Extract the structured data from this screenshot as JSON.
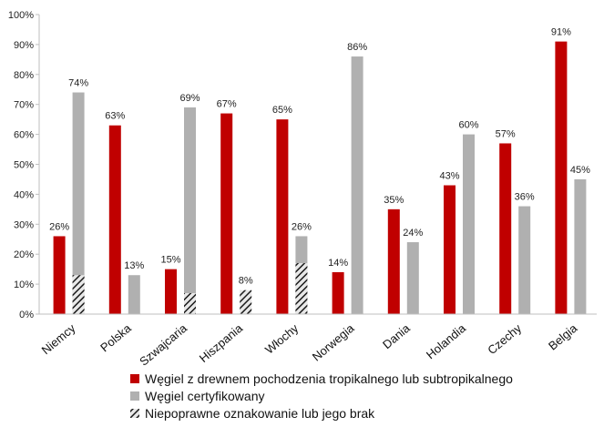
{
  "chart_data": {
    "type": "bar",
    "categories": [
      "Niemcy",
      "Polska",
      "Szwajcaria",
      "Hiszpania",
      "Włochy",
      "Norwegia",
      "Dania",
      "Holandia",
      "Czechy",
      "Belgia"
    ],
    "series": [
      {
        "name": "Węgiel z drewnem pochodzenia tropikalnego lub subtropikalnego",
        "color": "#c00000",
        "values": [
          26,
          63,
          15,
          67,
          65,
          14,
          35,
          43,
          57,
          91
        ],
        "labels": [
          "26%",
          "63%",
          "15%",
          "67%",
          "65%",
          "14%",
          "35%",
          "43%",
          "57%",
          "91%"
        ]
      },
      {
        "name": "Węgiel certyfikowany",
        "color": "#b0b0b0",
        "values": [
          74,
          13,
          69,
          null,
          26,
          86,
          24,
          60,
          36,
          45
        ],
        "labels": [
          "74%",
          "13%",
          "69%",
          "",
          "26%",
          "86%",
          "24%",
          "60%",
          "36%",
          "45%"
        ]
      },
      {
        "name": "Niepoprawne oznakowanie lub jego brak",
        "pattern": "hatched",
        "values": [
          13,
          null,
          7,
          8,
          17,
          null,
          null,
          null,
          null,
          null
        ],
        "labels": [
          "",
          "",
          "",
          "8%",
          "",
          "",
          "",
          "",
          "",
          ""
        ]
      }
    ],
    "y_ticks": [
      "0%",
      "10%",
      "20%",
      "30%",
      "40%",
      "50%",
      "60%",
      "70%",
      "80%",
      "90%",
      "100%"
    ],
    "ylim": [
      0,
      100
    ],
    "grid": false,
    "legend_position": "bottom"
  }
}
